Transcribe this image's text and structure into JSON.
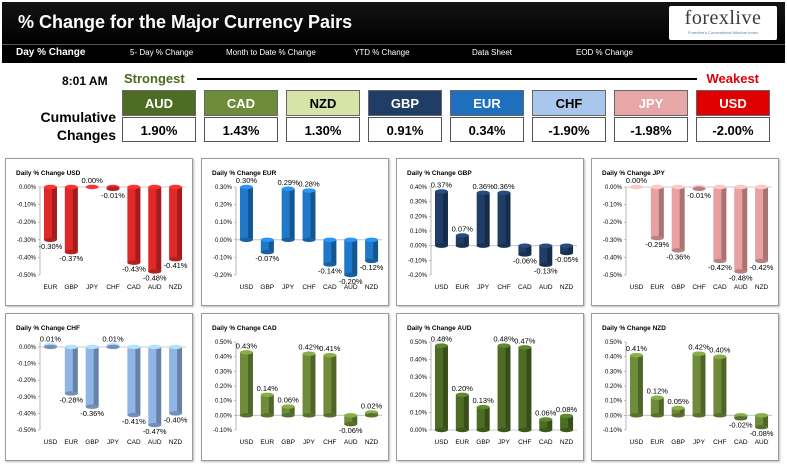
{
  "header": {
    "title": "% Change for the Major Currency Pairs"
  },
  "logo": {
    "brand": "forexlive",
    "tagline": "Forexlive's Conventional Wisdom Index"
  },
  "nav": [
    {
      "label": "Day % Change",
      "active": true
    },
    {
      "label": "5- Day % Change",
      "active": false
    },
    {
      "label": "Month to Date % Change",
      "active": false
    },
    {
      "label": "YTD % Change",
      "active": false
    },
    {
      "label": "Data Sheet",
      "active": false
    },
    {
      "label": "EOD % Change",
      "active": false
    }
  ],
  "timestamp": "8:01 AM",
  "strength": {
    "strongest": "Strongest",
    "weakest": "Weakest"
  },
  "cumulative_label": "Cumulative Changes",
  "cumulative": [
    {
      "currency": "AUD",
      "value": "1.90%",
      "color": "#4d6d24",
      "text": "#ffffff"
    },
    {
      "currency": "CAD",
      "value": "1.43%",
      "color": "#6e8c3a",
      "text": "#ffffff"
    },
    {
      "currency": "NZD",
      "value": "1.30%",
      "color": "#d6e4a8",
      "text": "#000000"
    },
    {
      "currency": "GBP",
      "value": "0.91%",
      "color": "#1f3d66",
      "text": "#ffffff"
    },
    {
      "currency": "EUR",
      "value": "0.34%",
      "color": "#1f6fbf",
      "text": "#ffffff"
    },
    {
      "currency": "CHF",
      "value": "-1.90%",
      "color": "#a9c7ec",
      "text": "#000000"
    },
    {
      "currency": "JPY",
      "value": "-1.98%",
      "color": "#e8a7a7",
      "text": "#ffffff"
    },
    {
      "currency": "USD",
      "value": "-2.00%",
      "color": "#e00000",
      "text": "#ffffff"
    }
  ],
  "chart_data": [
    {
      "type": "bar",
      "title": "Daily % Change USD",
      "categories": [
        "EUR",
        "GBP",
        "JPY",
        "CHF",
        "CAD",
        "AUD",
        "NZD"
      ],
      "values": [
        -0.3,
        -0.37,
        0.0,
        -0.01,
        -0.43,
        -0.48,
        -0.41
      ],
      "labels": [
        "-0.30%",
        "-0.37%",
        "0.00%",
        "-0.01%",
        "-0.43%",
        "-0.48%",
        "-0.41%"
      ],
      "yticks": [
        0.0,
        -0.1,
        -0.2,
        -0.3,
        -0.4,
        -0.5
      ],
      "ytick_labels": [
        "0.00%",
        "-0.10%",
        "-0.20%",
        "-0.30%",
        "-0.40%",
        "-0.50%"
      ],
      "ylim": [
        -0.5,
        0.0
      ],
      "color": "#e02828"
    },
    {
      "type": "bar",
      "title": "Daily % Change EUR",
      "categories": [
        "USD",
        "GBP",
        "JPY",
        "CHF",
        "CAD",
        "AUD",
        "NZD"
      ],
      "values": [
        0.3,
        -0.07,
        0.29,
        0.28,
        -0.14,
        -0.2,
        -0.12
      ],
      "labels": [
        "0.30%",
        "-0.07%",
        "0.29%",
        "0.28%",
        "-0.14%",
        "-0.20%",
        "-0.12%"
      ],
      "yticks": [
        0.3,
        0.2,
        0.1,
        0.0,
        -0.1,
        -0.2
      ],
      "ytick_labels": [
        "0.30%",
        "0.20%",
        "0.10%",
        "0.00%",
        "-0.10%",
        "-0.20%"
      ],
      "ylim": [
        -0.2,
        0.3
      ],
      "color": "#1f78c8"
    },
    {
      "type": "bar",
      "title": "Daily % Change GBP",
      "categories": [
        "USD",
        "EUR",
        "JPY",
        "CHF",
        "CAD",
        "AUD",
        "NZD"
      ],
      "values": [
        0.37,
        0.07,
        0.36,
        0.36,
        -0.06,
        -0.13,
        -0.05
      ],
      "labels": [
        "0.37%",
        "0.07%",
        "0.36%",
        "0.36%",
        "-0.06%",
        "-0.13%",
        "-0.05%"
      ],
      "yticks": [
        0.4,
        0.3,
        0.2,
        0.1,
        0.0,
        -0.1,
        -0.2
      ],
      "ytick_labels": [
        "0.40%",
        "0.30%",
        "0.20%",
        "0.10%",
        "0.00%",
        "-0.10%",
        "-0.20%"
      ],
      "ylim": [
        -0.2,
        0.4
      ],
      "color": "#1f3d66"
    },
    {
      "type": "bar",
      "title": "Daily % Change JPY",
      "categories": [
        "USD",
        "EUR",
        "GBP",
        "CHF",
        "CAD",
        "AUD",
        "NZD"
      ],
      "values": [
        0.0,
        -0.29,
        -0.36,
        -0.01,
        -0.42,
        -0.48,
        -0.42
      ],
      "labels": [
        "0.00%",
        "-0.29%",
        "-0.36%",
        "-0.01%",
        "-0.42%",
        "-0.48%",
        "-0.42%"
      ],
      "yticks": [
        0.0,
        -0.1,
        -0.2,
        -0.3,
        -0.4,
        -0.5
      ],
      "ytick_labels": [
        "0.00%",
        "-0.10%",
        "-0.20%",
        "-0.30%",
        "-0.40%",
        "-0.50%"
      ],
      "ylim": [
        -0.5,
        0.0
      ],
      "color": "#e8a0a0"
    },
    {
      "type": "bar",
      "title": "Daily % Change CHF",
      "categories": [
        "USD",
        "EUR",
        "GBP",
        "JPY",
        "CAD",
        "AUD",
        "NZD"
      ],
      "values": [
        0.01,
        -0.28,
        -0.36,
        0.01,
        -0.41,
        -0.47,
        -0.4
      ],
      "labels": [
        "0.01%",
        "-0.28%",
        "-0.36%",
        "0.01%",
        "-0.41%",
        "-0.47%",
        "-0.40%"
      ],
      "yticks": [
        0.0,
        -0.1,
        -0.2,
        -0.3,
        -0.4,
        -0.5
      ],
      "ytick_labels": [
        "0.00%",
        "-0.10%",
        "-0.20%",
        "-0.30%",
        "-0.40%",
        "-0.50%"
      ],
      "ylim": [
        -0.5,
        0.03
      ],
      "color": "#8fb4e6"
    },
    {
      "type": "bar",
      "title": "Daily % Change CAD",
      "categories": [
        "USD",
        "EUR",
        "GBP",
        "JPY",
        "CHF",
        "AUD",
        "NZD"
      ],
      "values": [
        0.43,
        0.14,
        0.06,
        0.42,
        0.41,
        -0.06,
        0.02
      ],
      "labels": [
        "0.43%",
        "0.14%",
        "0.06%",
        "0.42%",
        "0.41%",
        "-0.06%",
        "0.02%"
      ],
      "yticks": [
        0.5,
        0.4,
        0.3,
        0.2,
        0.1,
        0.0,
        -0.1
      ],
      "ytick_labels": [
        "0.50%",
        "0.40%",
        "0.30%",
        "0.20%",
        "0.10%",
        "0.00%",
        "-0.10%"
      ],
      "ylim": [
        -0.1,
        0.5
      ],
      "color": "#6e8c3a"
    },
    {
      "type": "bar",
      "title": "Daily % Change AUD",
      "categories": [
        "USD",
        "EUR",
        "GBP",
        "JPY",
        "CHF",
        "CAD",
        "NZD"
      ],
      "values": [
        0.48,
        0.2,
        0.13,
        0.48,
        0.47,
        0.06,
        0.08
      ],
      "labels": [
        "0.48%",
        "0.20%",
        "0.13%",
        "0.48%",
        "0.47%",
        "0.06%",
        "0.08%"
      ],
      "yticks": [
        0.5,
        0.4,
        0.3,
        0.2,
        0.1,
        0.0
      ],
      "ytick_labels": [
        "0.50%",
        "0.40%",
        "0.30%",
        "0.20%",
        "0.10%",
        "0.00%"
      ],
      "ylim": [
        0.0,
        0.5
      ],
      "color": "#4d6d24"
    },
    {
      "type": "bar",
      "title": "Daily % Change NZD",
      "categories": [
        "USD",
        "EUR",
        "GBP",
        "JPY",
        "CHF",
        "CAD",
        "AUD"
      ],
      "values": [
        0.41,
        0.12,
        0.05,
        0.42,
        0.4,
        -0.02,
        -0.08
      ],
      "labels": [
        "0.41%",
        "0.12%",
        "0.05%",
        "0.42%",
        "0.40%",
        "-0.02%",
        "-0.08%"
      ],
      "yticks": [
        0.5,
        0.4,
        0.3,
        0.2,
        0.1,
        0.0,
        -0.1
      ],
      "ytick_labels": [
        "0.50%",
        "0.40%",
        "0.30%",
        "0.20%",
        "0.10%",
        "0.00%",
        "-0.10%"
      ],
      "ylim": [
        -0.1,
        0.5
      ],
      "color": "#6e8c3a"
    }
  ]
}
